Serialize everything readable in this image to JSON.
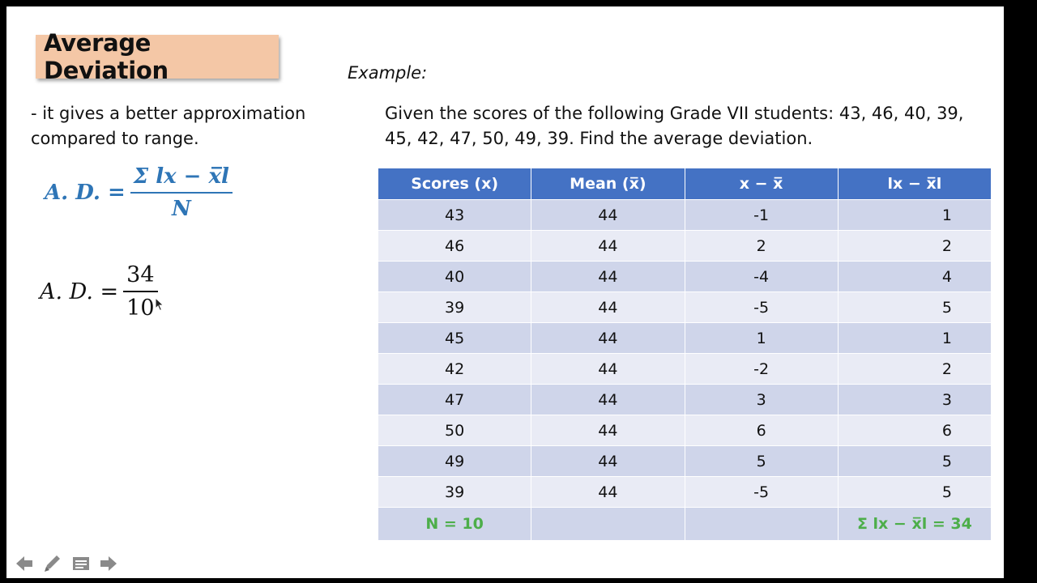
{
  "title": "Average Deviation",
  "example_label": "Example:",
  "description": "- it gives a better approximation compared to range.",
  "problem": "Given the scores of the following Grade VII students: 43, 46, 40, 39, 45, 42, 47, 50, 49, 39. Find the average deviation.",
  "formula1": {
    "lhs": "A. D. =",
    "numerator": "Σ lx − x̅l",
    "denominator": "N",
    "color": "#2E75B6"
  },
  "formula2": {
    "lhs": "A. D. =",
    "numerator": "34",
    "denominator": "10"
  },
  "table": {
    "headers": [
      "Scores (x)",
      "Mean (x̅)",
      "x − x̅",
      "lx − x̅l"
    ],
    "rows": [
      [
        "43",
        "44",
        "-1",
        "1"
      ],
      [
        "46",
        "44",
        "2",
        "2"
      ],
      [
        "40",
        "44",
        "-4",
        "4"
      ],
      [
        "39",
        "44",
        "-5",
        "5"
      ],
      [
        "45",
        "44",
        "1",
        "1"
      ],
      [
        "42",
        "44",
        "-2",
        "2"
      ],
      [
        "47",
        "44",
        "3",
        "3"
      ],
      [
        "50",
        "44",
        "6",
        "6"
      ],
      [
        "49",
        "44",
        "5",
        "5"
      ],
      [
        "39",
        "44",
        "-5",
        "5"
      ]
    ],
    "total": [
      "N = 10",
      "",
      "",
      "Σ lx − x̅l = 34"
    ],
    "colors": {
      "header": "#4472C4",
      "row_odd": "#CFD5EA",
      "row_even": "#E9EBF5",
      "total_text": "#4DAE4A"
    }
  },
  "nav_icons": [
    "back-arrow-icon",
    "pen-icon",
    "menu-icon",
    "forward-arrow-icon"
  ]
}
